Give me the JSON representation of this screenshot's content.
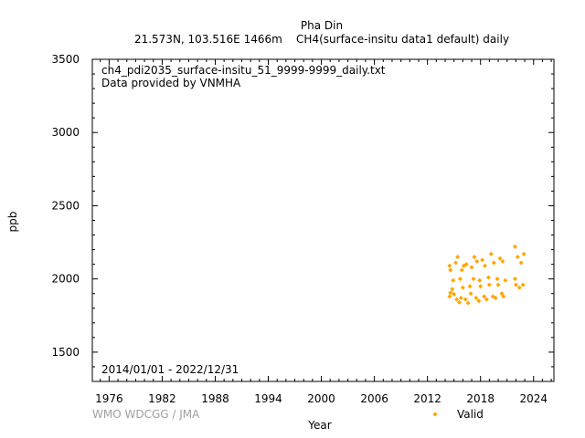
{
  "chart_data": {
    "type": "scatter",
    "title": "Pha Din",
    "subtitle": "21.573N, 103.516E 1466m    CH4(surface-insitu data1 default) daily",
    "file_label": "ch4_pdi2035_surface-insitu_51_9999-9999_daily.txt",
    "provider_label": "Data provided by VNMHA",
    "period_label": "2014/01/01 - 2022/12/31",
    "credit": "WMO WDCGG / JMA",
    "xlabel": "Year",
    "ylabel": "ppb",
    "xlim": [
      1974.1,
      2026.3
    ],
    "ylim": [
      1300,
      3500
    ],
    "x_ticks": [
      1976,
      1982,
      1988,
      1994,
      2000,
      2006,
      2012,
      2018,
      2024
    ],
    "y_ticks": [
      1500,
      2000,
      2500,
      3000,
      3500
    ],
    "legend_position": "bottom-right",
    "grid": false,
    "series": [
      {
        "name": "Valid",
        "color": "#FFA500",
        "marker": "diamond",
        "points": [
          [
            2014.5,
            1880
          ],
          [
            2014.5,
            2090
          ],
          [
            2014.6,
            1905
          ],
          [
            2014.6,
            2060
          ],
          [
            2014.8,
            1930
          ],
          [
            2014.9,
            1990
          ],
          [
            2015.0,
            1895
          ],
          [
            2015.2,
            2110
          ],
          [
            2015.3,
            1860
          ],
          [
            2015.4,
            2150
          ],
          [
            2015.6,
            1840
          ],
          [
            2015.7,
            2000
          ],
          [
            2015.8,
            1870
          ],
          [
            2015.9,
            2060
          ],
          [
            2016.0,
            1940
          ],
          [
            2016.1,
            2090
          ],
          [
            2016.3,
            1860
          ],
          [
            2016.4,
            2100
          ],
          [
            2016.6,
            1835
          ],
          [
            2016.8,
            1950
          ],
          [
            2016.9,
            1900
          ],
          [
            2017.0,
            2080
          ],
          [
            2017.2,
            2000
          ],
          [
            2017.3,
            2150
          ],
          [
            2017.5,
            1870
          ],
          [
            2017.6,
            2120
          ],
          [
            2017.8,
            1850
          ],
          [
            2017.9,
            1990
          ],
          [
            2018.0,
            1950
          ],
          [
            2018.2,
            2130
          ],
          [
            2018.4,
            1880
          ],
          [
            2018.5,
            2090
          ],
          [
            2018.7,
            1860
          ],
          [
            2018.9,
            2010
          ],
          [
            2019.0,
            1960
          ],
          [
            2019.2,
            2170
          ],
          [
            2019.4,
            1880
          ],
          [
            2019.5,
            2110
          ],
          [
            2019.7,
            1870
          ],
          [
            2019.9,
            2000
          ],
          [
            2020.0,
            1960
          ],
          [
            2020.2,
            2140
          ],
          [
            2020.4,
            1900
          ],
          [
            2020.5,
            2120
          ],
          [
            2020.6,
            1880
          ],
          [
            2020.8,
            1990
          ],
          [
            2021.9,
            2000
          ],
          [
            2021.9,
            2220
          ],
          [
            2022.0,
            1960
          ],
          [
            2022.2,
            2150
          ],
          [
            2022.4,
            1940
          ],
          [
            2022.6,
            2110
          ],
          [
            2022.8,
            1960
          ],
          [
            2022.9,
            2170
          ]
        ]
      }
    ]
  }
}
